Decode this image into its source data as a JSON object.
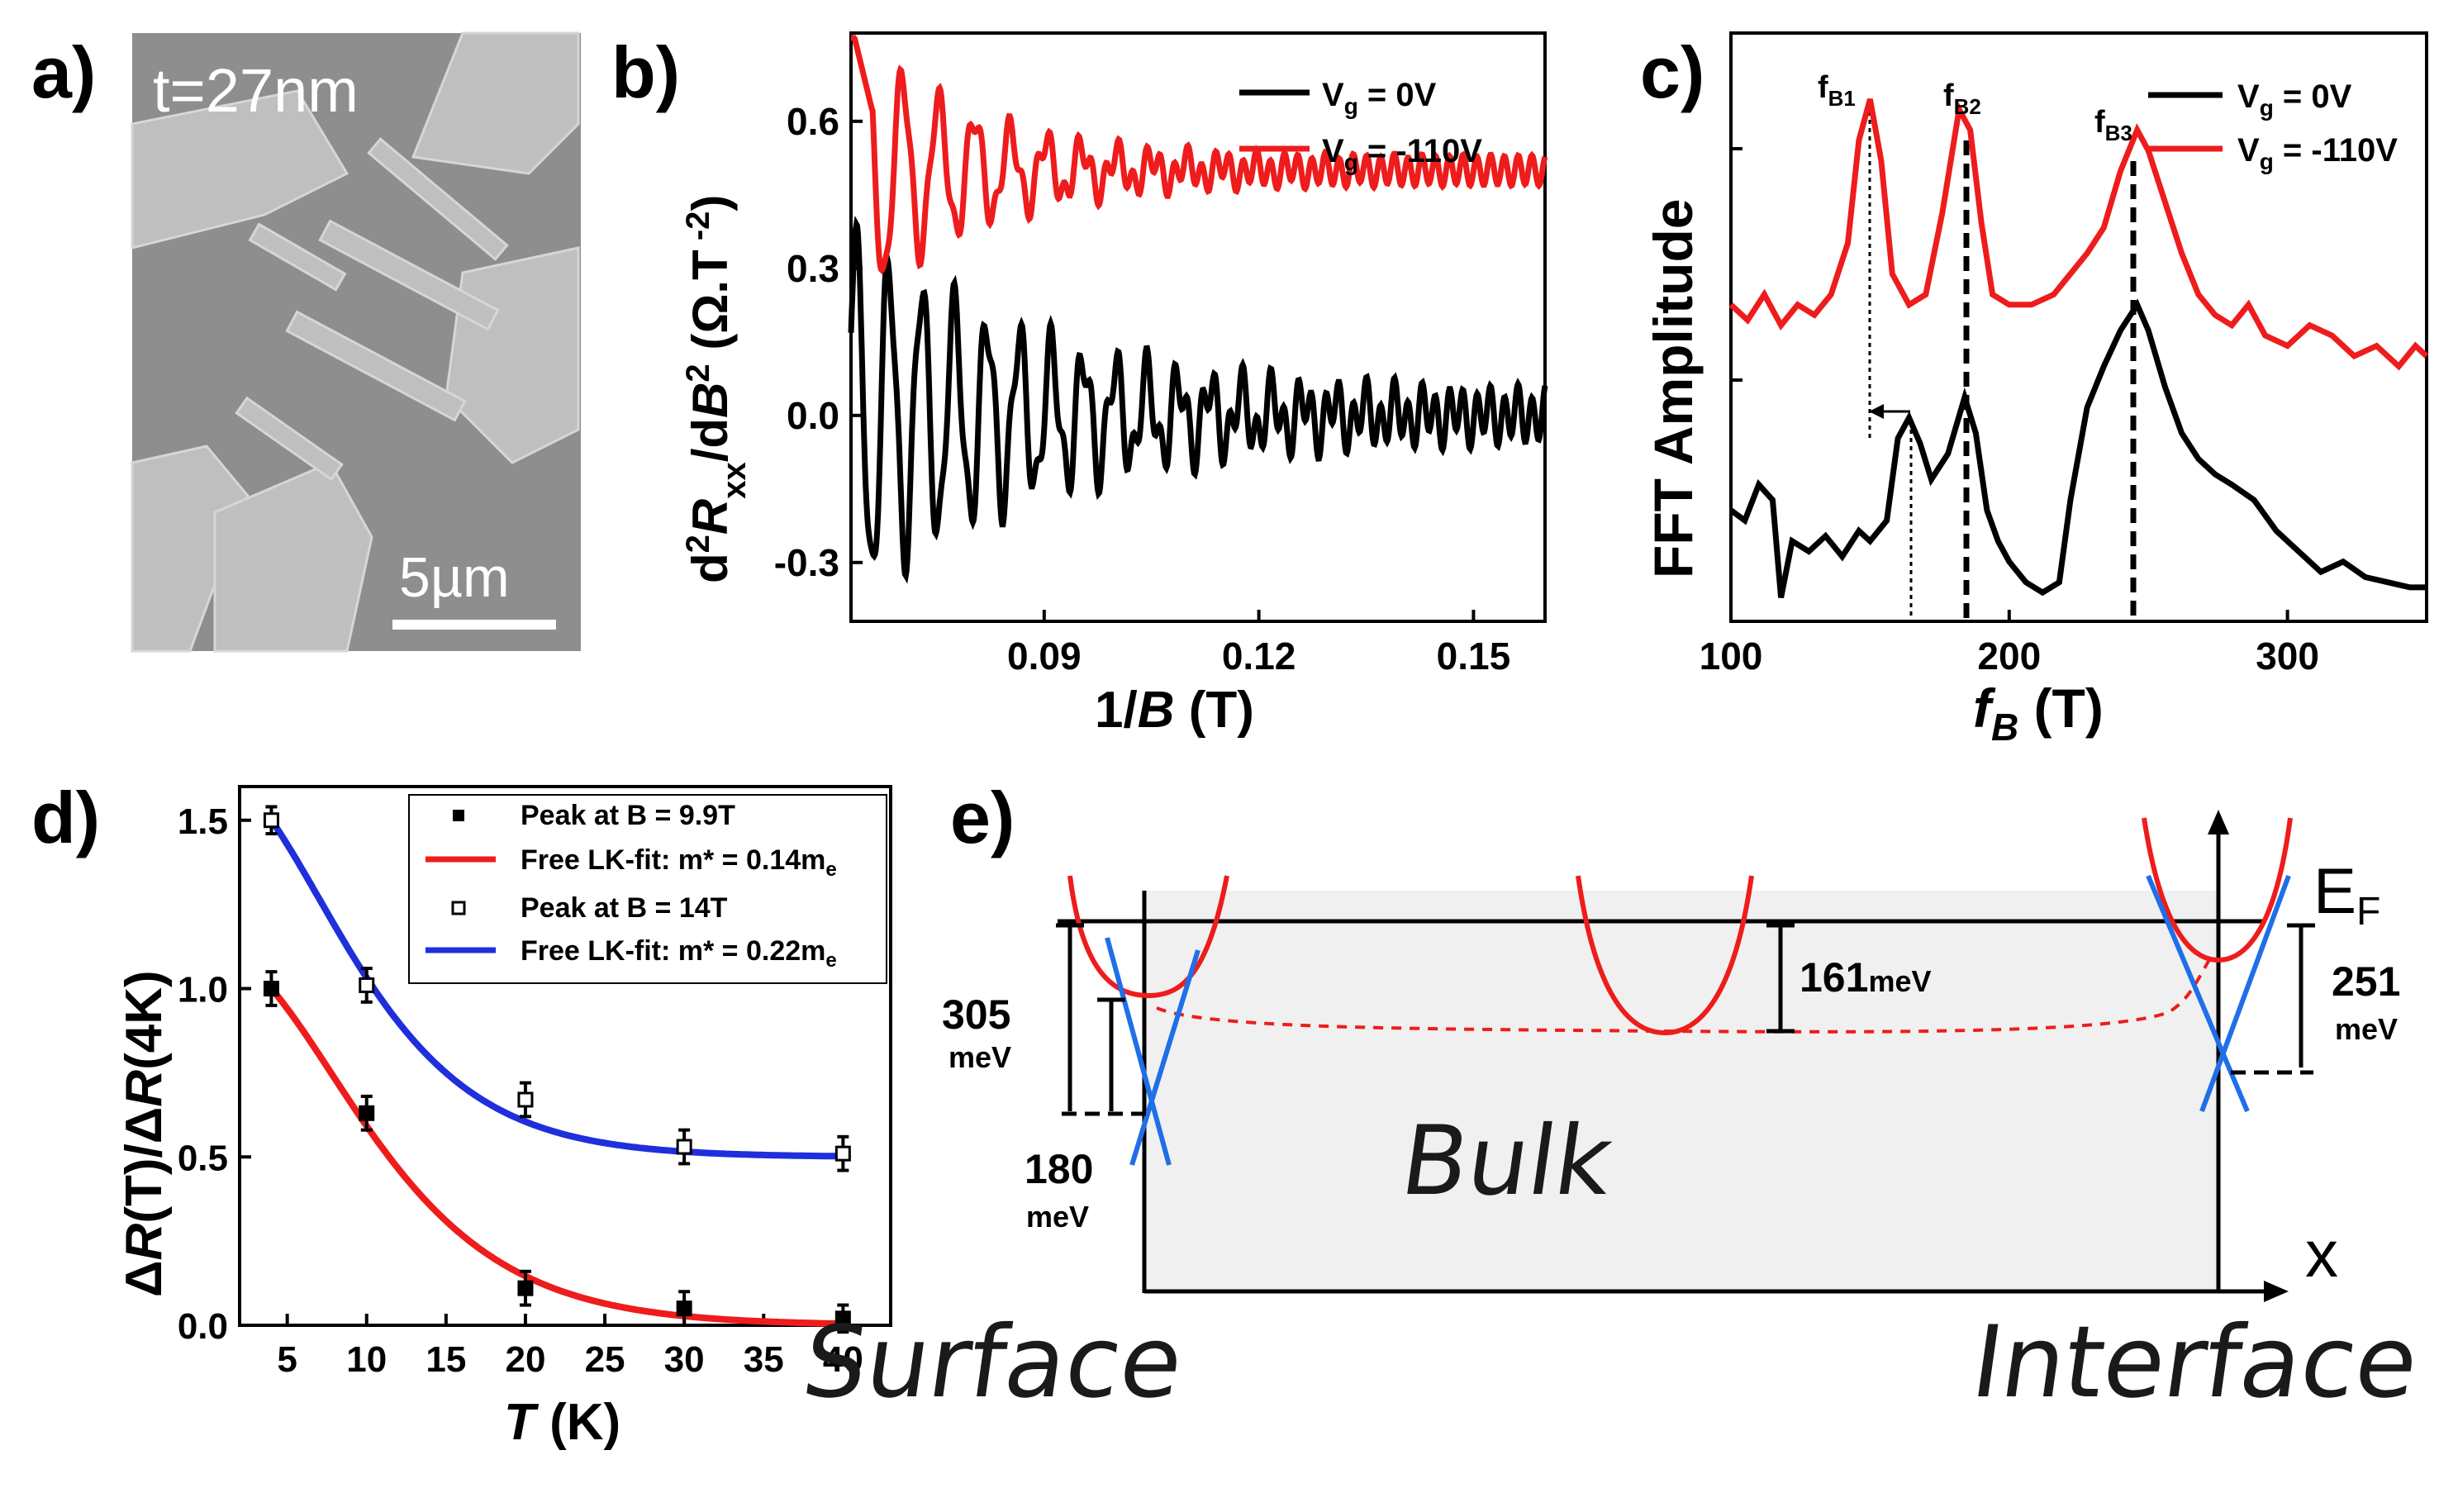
{
  "colors": {
    "red": "#ee1c1c",
    "black": "#000000",
    "blue": "#1f2fdc",
    "shade": "#f0f0f0"
  },
  "panel_a": {
    "label": "a)",
    "thickness": "t=27nm",
    "scalebar": "5µm"
  },
  "chart_data": [
    {
      "id": "b",
      "type": "line",
      "label": "b)",
      "xlabel": "1/B (T)",
      "ylabel": "d²Rxx/dB² (Ω.T⁻²)",
      "xlim": [
        0.063,
        0.16
      ],
      "ylim": [
        -0.42,
        0.78
      ],
      "xticks": [
        "0.09",
        "0.12",
        "0.15"
      ],
      "xtick_values": [
        0.09,
        0.12,
        0.15
      ],
      "yticks": [
        "-0.3",
        "0.0",
        "0.3",
        "0.6"
      ],
      "ytick_values": [
        -0.3,
        0.0,
        0.3,
        0.6
      ],
      "legend": [
        "V_g = 0V",
        "V_g = -110V"
      ],
      "legend_subscript": "g",
      "series": [
        {
          "name": "Vg = 0V",
          "color": "black",
          "offset": 0.0,
          "amp0": 0.36,
          "decay": 34,
          "freq": 208,
          "ripple": 0.05
        },
        {
          "name": "Vg = -110V",
          "color": "red",
          "offset": 0.5,
          "amp0": 0.28,
          "decay": 55,
          "freq": 188,
          "ripple": 0.03
        }
      ]
    },
    {
      "id": "c",
      "type": "line",
      "label": "c)",
      "xlabel": "f_B (T)",
      "ylabel": "FFT Amplitude",
      "xlim": [
        100,
        350
      ],
      "ylim": [
        0,
        1.0
      ],
      "xticks": [
        "100",
        "200",
        "300"
      ],
      "xtick_values": [
        100,
        200,
        300
      ],
      "peak_labels": [
        {
          "text": "f_B1",
          "sub": "B1",
          "x": 150
        },
        {
          "text": "f_B2",
          "sub": "B2",
          "x": 183
        },
        {
          "text": "f_B3",
          "sub": "B3",
          "x": 245
        }
      ],
      "legend": [
        "V_g = 0V",
        "V_g = -110V"
      ],
      "series": [
        {
          "name": "Vg = 0V",
          "color": "black",
          "x": [
            100,
            105,
            110,
            115,
            118,
            122,
            128,
            134,
            140,
            146,
            150,
            156,
            160,
            164,
            168,
            172,
            178,
            184,
            188,
            192,
            196,
            200,
            206,
            212,
            218,
            222,
            228,
            234,
            240,
            246,
            250,
            256,
            262,
            268,
            274,
            280,
            288,
            296,
            304,
            312,
            320,
            328,
            336,
            344,
            350
          ],
          "y": [
            0.2,
            0.18,
            0.25,
            0.22,
            0.03,
            0.14,
            0.12,
            0.15,
            0.11,
            0.16,
            0.14,
            0.18,
            0.34,
            0.38,
            0.33,
            0.26,
            0.31,
            0.42,
            0.35,
            0.2,
            0.14,
            0.1,
            0.06,
            0.04,
            0.06,
            0.22,
            0.4,
            0.48,
            0.55,
            0.6,
            0.55,
            0.44,
            0.35,
            0.3,
            0.27,
            0.25,
            0.22,
            0.16,
            0.12,
            0.08,
            0.1,
            0.07,
            0.06,
            0.05,
            0.05
          ]
        },
        {
          "name": "Vg = -110V",
          "color": "red",
          "x": [
            100,
            106,
            112,
            118,
            124,
            130,
            136,
            142,
            146,
            150,
            154,
            158,
            164,
            170,
            176,
            182,
            186,
            190,
            194,
            200,
            208,
            216,
            222,
            228,
            234,
            240,
            246,
            250,
            256,
            262,
            268,
            274,
            280,
            286,
            292,
            300,
            308,
            316,
            324,
            332,
            340,
            346,
            350
          ],
          "y": [
            0.6,
            0.57,
            0.62,
            0.56,
            0.6,
            0.58,
            0.62,
            0.72,
            0.92,
            1.0,
            0.88,
            0.66,
            0.6,
            0.62,
            0.78,
            0.98,
            0.94,
            0.76,
            0.62,
            0.6,
            0.6,
            0.62,
            0.66,
            0.7,
            0.75,
            0.86,
            0.94,
            0.9,
            0.8,
            0.7,
            0.62,
            0.58,
            0.56,
            0.6,
            0.54,
            0.52,
            0.56,
            0.54,
            0.5,
            0.52,
            0.48,
            0.52,
            0.5
          ]
        }
      ]
    },
    {
      "id": "d",
      "type": "scatter",
      "label": "d)",
      "xlabel": "T (K)",
      "ylabel": "ΔR(T)/ΔR(4K)",
      "xlim": [
        2,
        43
      ],
      "ylim": [
        0,
        1.6
      ],
      "xticks": [
        "5",
        "10",
        "15",
        "20",
        "25",
        "30",
        "35",
        "40"
      ],
      "xtick_values": [
        5,
        10,
        15,
        20,
        25,
        30,
        35,
        40
      ],
      "yticks": [
        "0.0",
        "0.5",
        "1.0",
        "1.5"
      ],
      "ytick_values": [
        0,
        0.5,
        1.0,
        1.5
      ],
      "legend": [
        "Peak at B = 9.9T",
        "Free LK-fit: m* = 0.14m",
        "Peak at B = 14T",
        "Free LK-fit: m* = 0.22m"
      ],
      "legend_sub": "e",
      "series": [
        {
          "name": "Peak at B = 9.9T",
          "marker": "filled-square",
          "T": [
            4,
            10,
            20,
            30,
            40
          ],
          "y": [
            1.0,
            0.63,
            0.11,
            0.05,
            0.02
          ],
          "err": [
            0.05,
            0.05,
            0.05,
            0.05,
            0.04
          ]
        },
        {
          "name": "Peak at B = 14T",
          "marker": "open-square",
          "T": [
            4,
            10,
            20,
            30,
            40
          ],
          "y": [
            1.5,
            1.01,
            0.67,
            0.53,
            0.51
          ],
          "err": [
            0.04,
            0.05,
            0.05,
            0.05,
            0.05
          ]
        }
      ],
      "fits": [
        {
          "name": "m* = 0.14me",
          "color": "red",
          "mass": 0.14,
          "B": 9.9,
          "offset": 0.0
        },
        {
          "name": "m* = 0.22me",
          "color": "blue",
          "mass": 0.22,
          "B": 14,
          "offset": 0.5
        }
      ]
    }
  ],
  "panel_e": {
    "label": "e)",
    "fermi": "E",
    "fermi_sub": "F",
    "axis": "x",
    "bulk": "Bulk",
    "surface": "Surface",
    "interface": "Interface",
    "energies": {
      "left_outer": "305",
      "left_outer_unit": "meV",
      "left_inner": "180",
      "left_inner_unit": "meV",
      "mid": "161",
      "mid_unit": "meV",
      "right": "251",
      "right_unit": "meV"
    }
  }
}
